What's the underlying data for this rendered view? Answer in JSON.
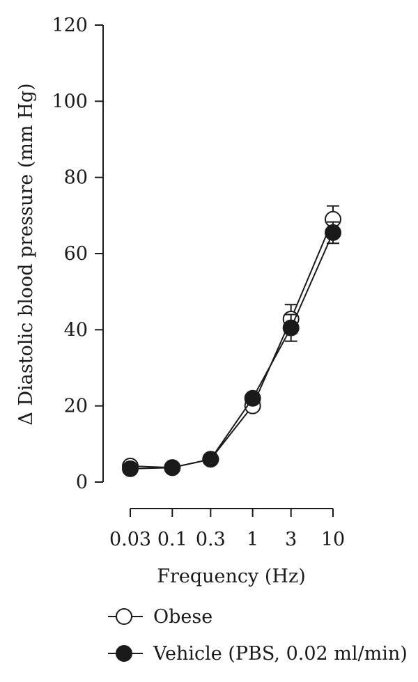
{
  "chart_data": {
    "type": "line",
    "xlabel": "Frequency (Hz)",
    "ylabel": "Δ Diastolic blood pressure (mm Hg)",
    "x_scale": "log",
    "x_ticks": [
      "0.03",
      "0.1",
      "0.3",
      "1",
      "3",
      "10"
    ],
    "x": [
      0.03,
      0.1,
      0.3,
      1,
      3,
      10
    ],
    "ylim": [
      0,
      120
    ],
    "y_ticks": [
      "0",
      "20",
      "40",
      "60",
      "80",
      "100",
      "120"
    ],
    "series": [
      {
        "name": "Obese",
        "marker": "open-circle",
        "values": [
          4.2,
          3.8,
          6.0,
          20.0,
          42.8,
          69.0
        ],
        "error": [
          0,
          0,
          0,
          0,
          3.8,
          3.5
        ]
      },
      {
        "name": "Vehicle (PBS, 0.02 ml/min)",
        "marker": "filled-circle",
        "values": [
          3.5,
          3.8,
          6.0,
          22.0,
          40.5,
          65.5
        ],
        "error": [
          0,
          0,
          0,
          0,
          3.5,
          2.8
        ]
      }
    ],
    "legend_position": "bottom",
    "grid": false
  }
}
